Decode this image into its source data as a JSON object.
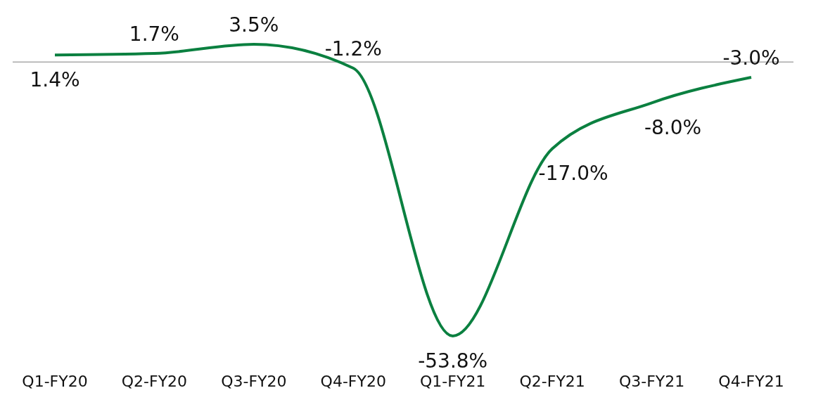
{
  "chart_data": {
    "type": "line",
    "categories": [
      "Q1-FY20",
      "Q2-FY20",
      "Q3-FY20",
      "Q4-FY20",
      "Q1-FY21",
      "Q2-FY21",
      "Q3-FY21",
      "Q4-FY21"
    ],
    "series": [
      {
        "color": "#0b8040",
        "values": [
          1.4,
          1.7,
          3.5,
          -1.2,
          -53.8,
          -17.0,
          -8.0,
          -3.0
        ],
        "value_labels": [
          "1.4%",
          "1.7%",
          "3.5%",
          "-1.2%",
          "-53.8%",
          "-17.0%",
          "-8.0%",
          "-3.0%"
        ]
      }
    ],
    "marker": "none",
    "line_style": "solid"
  }
}
